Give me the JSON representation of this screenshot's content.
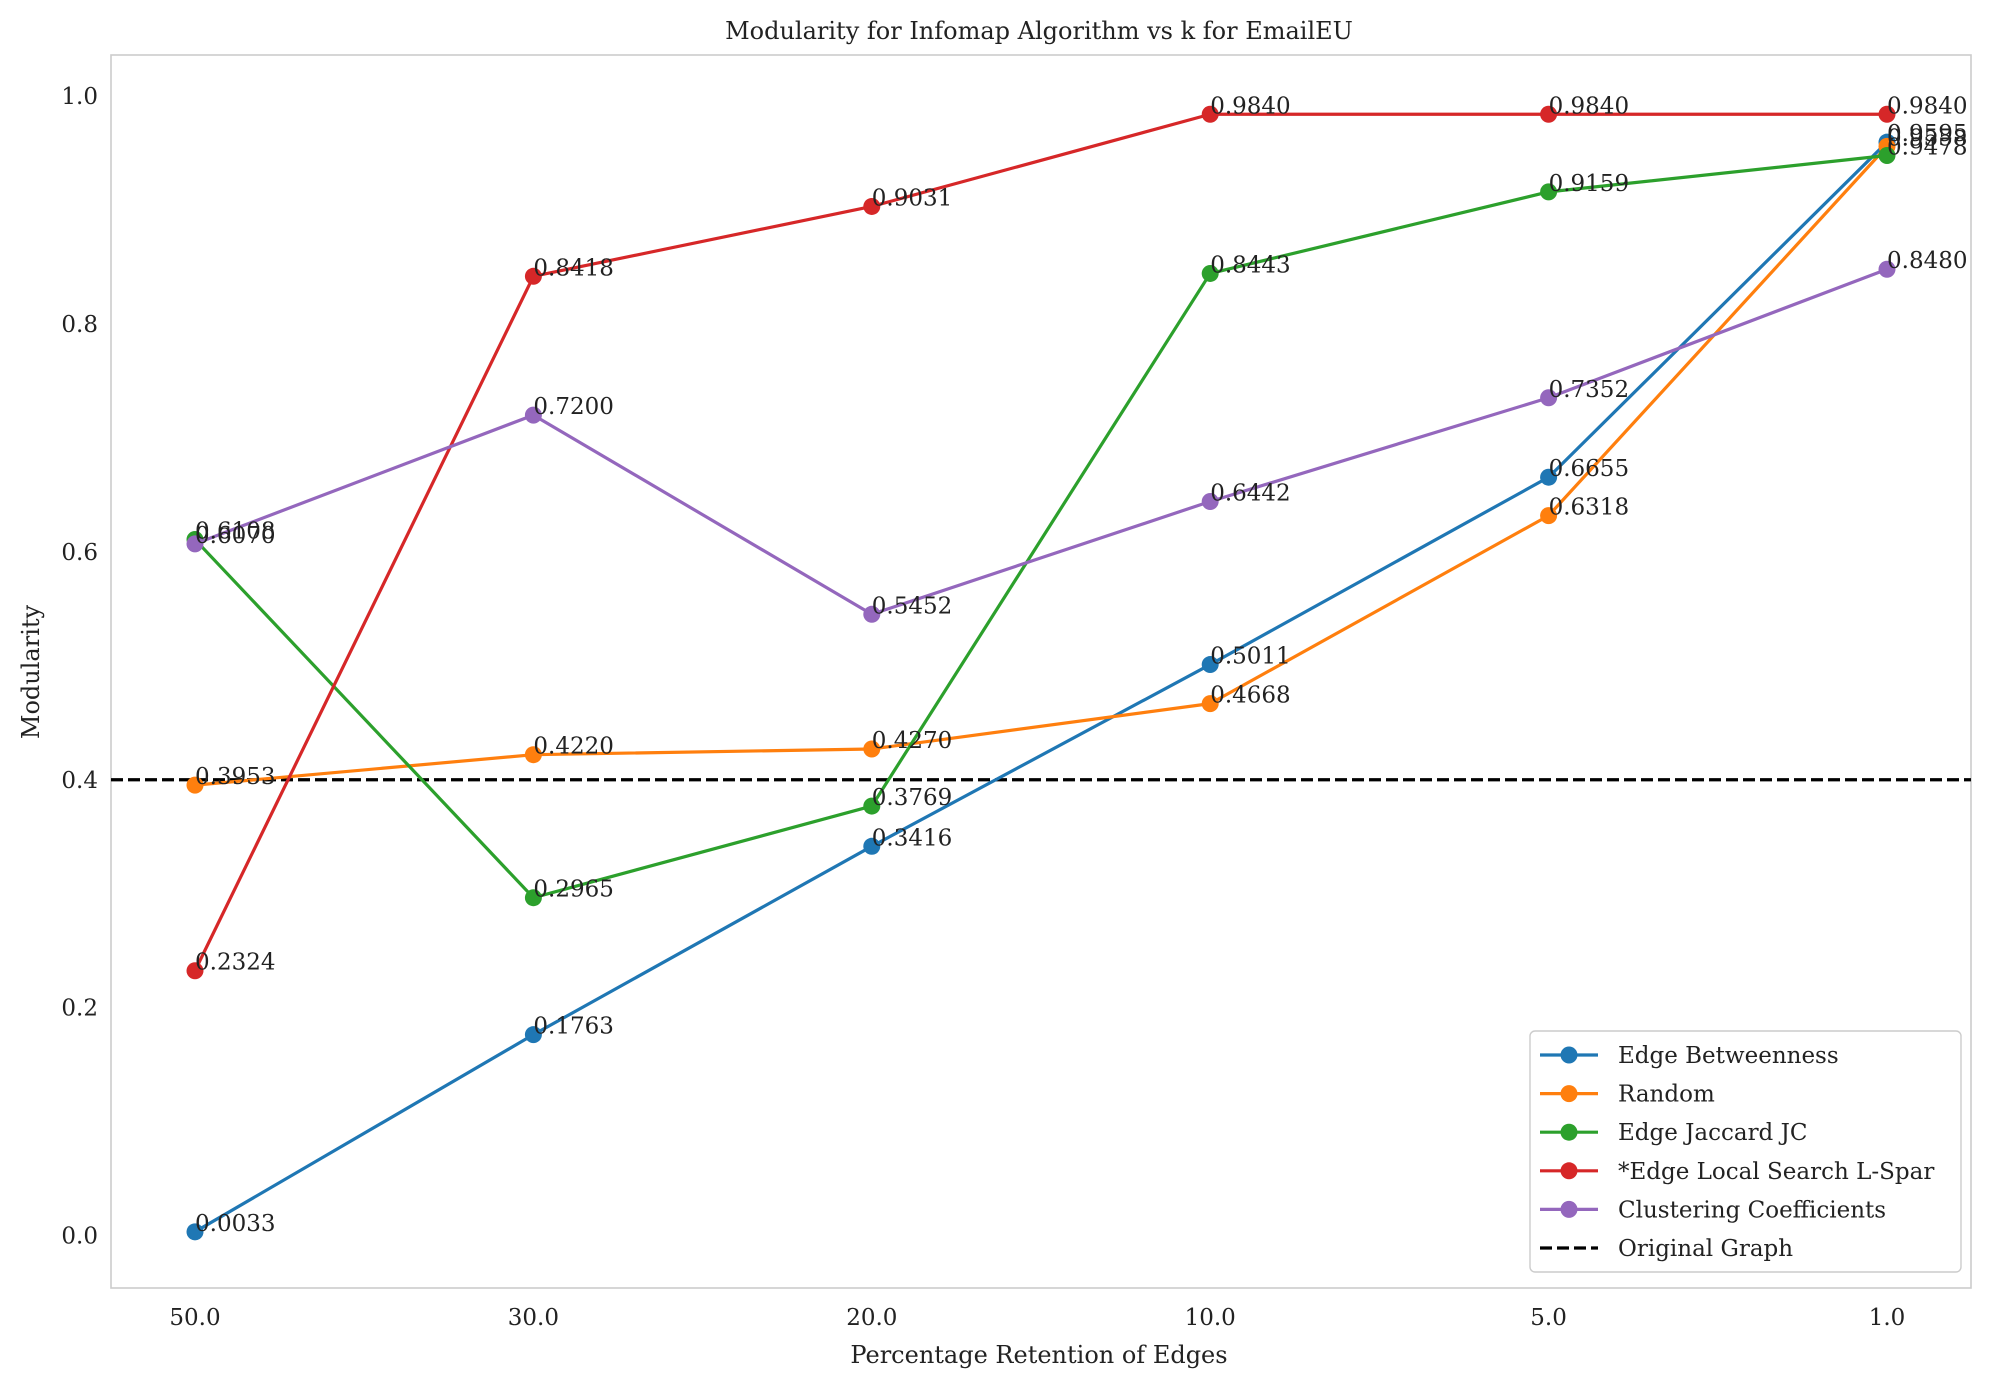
{
  "chart_data": {
    "type": "line",
    "title": "Modularity for Infomap Algorithm vs k for EmailEU",
    "xlabel": "Percentage Retention of Edges",
    "ylabel": "Modularity",
    "categories": [
      "50.0",
      "30.0",
      "20.0",
      "10.0",
      "5.0",
      "1.0"
    ],
    "ylim": [
      -0.046,
      1.036
    ],
    "yticks": [
      0.0,
      0.2,
      0.4,
      0.6,
      0.8,
      1.0
    ],
    "ytick_labels": [
      "0.0",
      "0.2",
      "0.4",
      "0.6",
      "0.8",
      "1.0"
    ],
    "grid": false,
    "legend_position": "lower-right",
    "series": [
      {
        "name": "Edge Betweenness",
        "color": "#1f77b4",
        "values": [
          0.0033,
          0.1763,
          0.3416,
          0.5011,
          0.6655,
          0.9595
        ],
        "labels": [
          "0.0033",
          "0.1763",
          "0.3416",
          "0.5011",
          "0.6655",
          "0.9595"
        ]
      },
      {
        "name": "Random",
        "color": "#ff7f0e",
        "values": [
          0.3953,
          0.422,
          0.427,
          0.4668,
          0.6318,
          0.9558
        ],
        "labels": [
          "0.3953",
          "0.4220",
          "0.4270",
          "0.4668",
          "0.6318",
          "0.9558"
        ]
      },
      {
        "name": "Edge Jaccard JC",
        "color": "#2ca02c",
        "values": [
          0.6108,
          0.2965,
          0.3769,
          0.8443,
          0.9159,
          0.9478
        ],
        "labels": [
          "0.6108",
          "0.2965",
          "0.3769",
          "0.8443",
          "0.9159",
          "0.9478"
        ]
      },
      {
        "name": "*Edge Local Search L-Spar",
        "color": "#d62728",
        "values": [
          0.2324,
          0.8418,
          0.9031,
          0.984,
          0.984,
          0.984
        ],
        "labels": [
          "0.2324",
          "0.8418",
          "0.9031",
          "0.9840",
          "0.9840",
          "0.9840"
        ]
      },
      {
        "name": "Clustering Coefficients",
        "color": "#9467bd",
        "values": [
          0.607,
          0.72,
          0.5452,
          0.6442,
          0.7352,
          0.848
        ],
        "labels": [
          "0.6070",
          "0.7200",
          "0.5452",
          "0.6442",
          "0.7352",
          "0.8480"
        ]
      }
    ],
    "reference_line": {
      "name": "Original Graph",
      "color": "#000000",
      "value": 0.4,
      "style": "dashed"
    }
  }
}
